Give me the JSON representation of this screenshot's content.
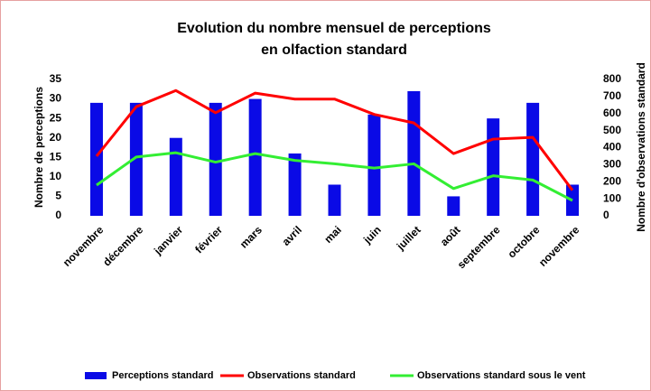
{
  "chart_data": {
    "type": "bar_line",
    "title": [
      "Evolution du nombre mensuel de perceptions",
      "en olfaction standard"
    ],
    "ylabel": "Nombre de perceptions",
    "y2label": "Nombre d'observations standard",
    "categories": [
      "novembre",
      "décembre",
      "janvier",
      "février",
      "mars",
      "avril",
      "mai",
      "juin",
      "juillet",
      "août",
      "septembre",
      "octobre",
      "novembre"
    ],
    "series": [
      {
        "name": "Perceptions standard",
        "type": "bar",
        "color": "#0a0ae6",
        "values": [
          29,
          29,
          20,
          29,
          30,
          16,
          8,
          26,
          32,
          5,
          25,
          29,
          8
        ]
      },
      {
        "name": "Observations standard",
        "type": "line",
        "axis": "y2",
        "color": "#ff0000",
        "values": [
          350,
          640,
          735,
          605,
          720,
          685,
          685,
          595,
          545,
          365,
          450,
          460,
          150
        ]
      },
      {
        "name": "Observations standard sous le vent",
        "type": "line",
        "axis": "y2",
        "color": "#33ee33",
        "values": [
          180,
          345,
          370,
          315,
          365,
          325,
          305,
          280,
          305,
          160,
          235,
          210,
          90
        ]
      }
    ],
    "ylim": [
      0,
      35
    ],
    "yticks": [
      0,
      5,
      10,
      15,
      20,
      25,
      30,
      35
    ],
    "y2lim": [
      0,
      800
    ],
    "y2ticks": [
      0,
      100,
      200,
      300,
      400,
      500,
      600,
      700,
      800
    ],
    "legend": "bottom"
  }
}
